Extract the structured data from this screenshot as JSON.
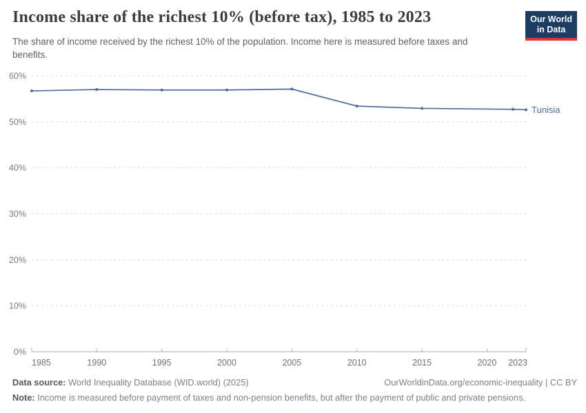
{
  "header": {
    "title": "Income share of the richest 10% (before tax), 1985 to 2023",
    "subtitle": "The share of income received by the richest 10% of the population. Income here is measured before taxes and benefits.",
    "logo": {
      "line1": "Our World",
      "line2": "in Data",
      "bg_color": "#1d3d63",
      "accent_color": "#d7392e"
    }
  },
  "chart_data": {
    "type": "line",
    "title": "Income share of the richest 10% (before tax), 1985 to 2023",
    "x": [
      1985,
      1990,
      1995,
      2000,
      2005,
      2010,
      2015,
      2022,
      2023
    ],
    "series": [
      {
        "name": "Tunisia",
        "color": "#4c6a9c",
        "values": [
          56.7,
          57.0,
          56.9,
          56.9,
          57.1,
          53.4,
          52.9,
          52.7,
          52.6
        ]
      }
    ],
    "xlabel": "",
    "ylabel": "",
    "xlim": [
      1985,
      2023
    ],
    "ylim": [
      0,
      60
    ],
    "xticks": [
      1985,
      1990,
      1995,
      2000,
      2005,
      2010,
      2015,
      2020,
      2023
    ],
    "yticks": [
      0,
      10,
      20,
      30,
      40,
      50,
      60
    ],
    "ytick_suffix": "%",
    "grid": "horizontal-dashed",
    "legend_position": "end-of-line-label",
    "grid_color": "#d9d9d9",
    "axis_color": "#a8a8a8",
    "ytick_label_color": "#797d81",
    "xtick_label_color": "#6e7276"
  },
  "footer": {
    "datasource_label": "Data source:",
    "datasource_value": " World Inequality Database (WID.world) (2025)",
    "link": "OurWorldinData.org/economic-inequality | CC BY",
    "note_label": "Note:",
    "note_value": " Income is measured before payment of taxes and non-pension benefits, but after the payment of public and private pensions."
  }
}
